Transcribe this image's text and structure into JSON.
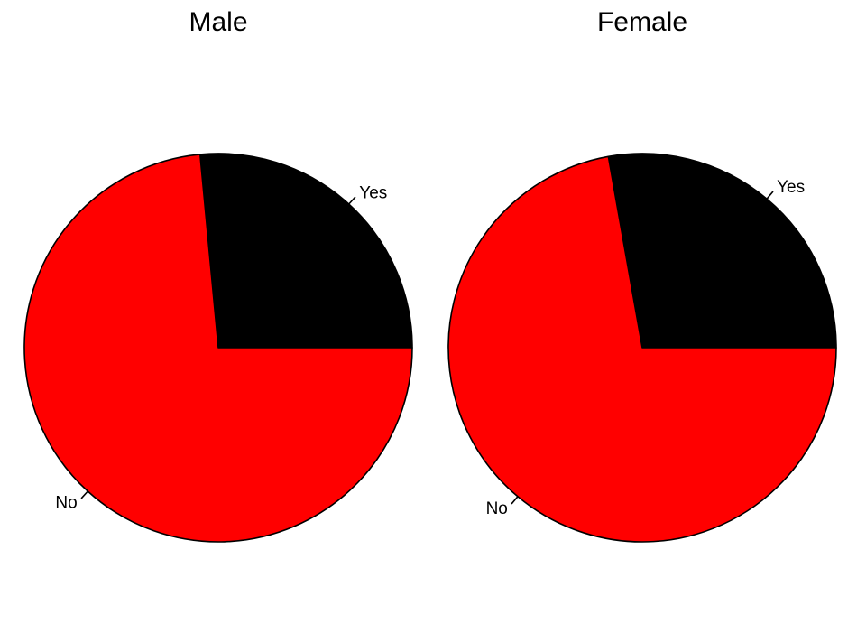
{
  "chart_data": [
    {
      "type": "pie",
      "title": "Male",
      "categories": [
        "Yes",
        "No"
      ],
      "values": [
        26.5,
        73.5
      ],
      "colors": [
        "#000000",
        "#ff0000"
      ],
      "start": "0° (right), counterclockwise"
    },
    {
      "type": "pie",
      "title": "Female",
      "categories": [
        "Yes",
        "No"
      ],
      "values": [
        27.8,
        72.2
      ],
      "colors": [
        "#000000",
        "#ff0000"
      ],
      "start": "0° (right), counterclockwise"
    }
  ]
}
